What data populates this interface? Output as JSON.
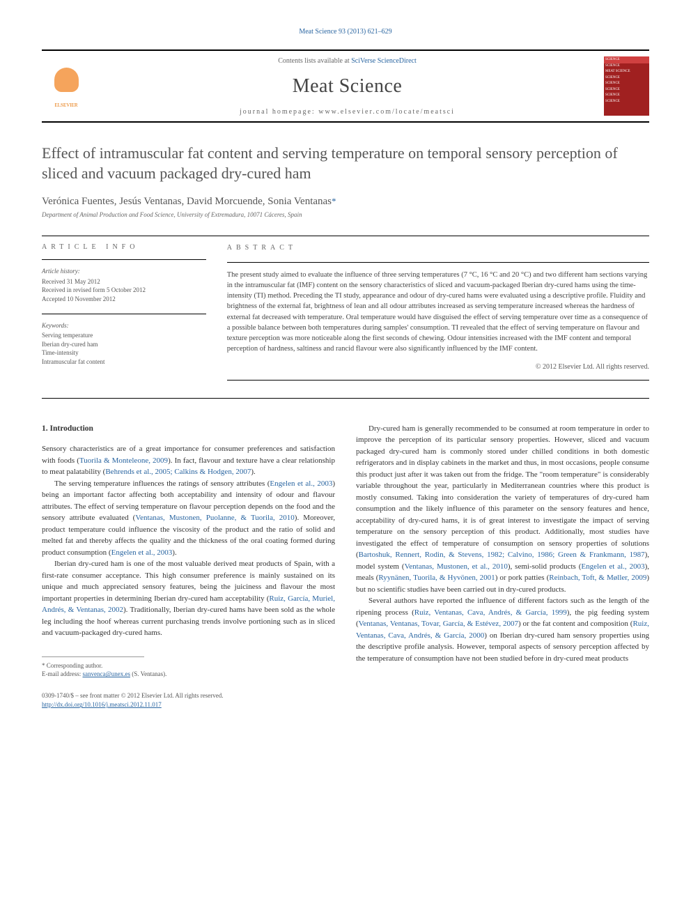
{
  "header_link": "Meat Science 93 (2013) 621–629",
  "contents_lists": "Contents lists available at ",
  "contents_link": "SciVerse ScienceDirect",
  "journal_name": "Meat Science",
  "homepage_label": "journal homepage: ",
  "homepage_url": "www.elsevier.com/locate/meatsci",
  "publisher": "ELSEVIER",
  "cover_lines": [
    "SCIENCE",
    "SCIENCE",
    "MEAT SCIENCE",
    "SCIENCE",
    "SCIENCE",
    "SCIENCE",
    "SCIENCE",
    "SCIENCE"
  ],
  "title": "Effect of intramuscular fat content and serving temperature on temporal sensory perception of sliced and vacuum packaged dry-cured ham",
  "authors": "Verónica Fuentes, Jesús Ventanas, David Morcuende, Sonia Ventanas",
  "corresp_mark": "*",
  "affiliation": "Department of Animal Production and Food Science, University of Extremadura, 10071 Cáceres, Spain",
  "article_info_heading": "ARTICLE INFO",
  "abstract_heading": "ABSTRACT",
  "history_label": "Article history:",
  "history_received": "Received 31 May 2012",
  "history_revised": "Received in revised form 5 October 2012",
  "history_accepted": "Accepted 10 November 2012",
  "keywords_label": "Keywords:",
  "keywords": [
    "Serving temperature",
    "Iberian dry-cured ham",
    "Time-intensity",
    "Intramuscular fat content"
  ],
  "abstract_text": "The present study aimed to evaluate the influence of three serving temperatures (7 °C, 16 °C and 20 °C) and two different ham sections varying in the intramuscular fat (IMF) content on the sensory characteristics of sliced and vacuum-packaged Iberian dry-cured hams using the time-intensity (TI) method. Preceding the TI study, appearance and odour of dry-cured hams were evaluated using a descriptive profile. Fluidity and brightness of the external fat, brightness of lean and all odour attributes increased as serving temperature increased whereas the hardness of external fat decreased with temperature. Oral temperature would have disguised the effect of serving temperature over time as a consequence of a possible balance between both temperatures during samples' consumption. TI revealed that the effect of serving temperature on flavour and texture perception was more noticeable along the first seconds of chewing. Odour intensities increased with the IMF content and temporal perception of hardness, saltiness and rancid flavour were also significantly influenced by the IMF content.",
  "copyright_line": "© 2012 Elsevier Ltd. All rights reserved.",
  "section1_heading": "1. Introduction",
  "left_paras": [
    {
      "text": "Sensory characteristics are of a great importance for consumer preferences and satisfaction with foods (",
      "cite": "Tuorila & Monteleone, 2009",
      "text2": "). In fact, flavour and texture have a clear relationship to meat palatability (",
      "cite2": "Behrends et al., 2005; Calkins & Hodgen, 2007",
      "text3": ")."
    },
    {
      "text": "The serving temperature influences the ratings of sensory attributes (",
      "cite": "Engelen et al., 2003",
      "text2": ") being an important factor affecting both acceptability and intensity of odour and flavour attributes. The effect of serving temperature on flavour perception depends on the food and the sensory attribute evaluated (",
      "cite2": "Ventanas, Mustonen, Puolanne, & Tuorila, 2010",
      "text3": "). Moreover, product temperature could influence the viscosity of the product and the ratio of solid and melted fat and thereby affects the quality and the thickness of the oral coating formed during product consumption (",
      "cite3": "Engelen et al., 2003",
      "text4": ")."
    },
    {
      "text": "Iberian dry-cured ham is one of the most valuable derived meat products of Spain, with a first-rate consumer acceptance. This high consumer preference is mainly sustained on its unique and much appreciated sensory features, being the juiciness and flavour the most important properties in determining Iberian dry-cured ham acceptability (",
      "cite": "Ruiz, García, Muriel, Andrés, & Ventanas, 2002",
      "text2": "). Traditionally, Iberian dry-cured hams have been sold as the whole leg including the hoof whereas current purchasing trends involve portioning such as in sliced and vacuum-packaged dry-cured hams."
    }
  ],
  "right_paras": [
    {
      "text": "Dry-cured ham is generally recommended to be consumed at room temperature in order to improve the perception of its particular sensory properties. However, sliced and vacuum packaged dry-cured ham is commonly stored under chilled conditions in both domestic refrigerators and in display cabinets in the market and thus, in most occasions, people consume this product just after it was taken out from the fridge. The \"room temperature\" is considerably variable throughout the year, particularly in Mediterranean countries where this product is mostly consumed. Taking into consideration the variety of temperatures of dry-cured ham consumption and the likely influence of this parameter on the sensory features and hence, acceptability of dry-cured hams, it is of great interest to investigate the impact of serving temperature on the sensory perception of this product. Additionally, most studies have investigated the effect of temperature of consumption on sensory properties of solutions (",
      "cite": "Bartoshuk, Rennert, Rodin, & Stevens, 1982; Calvino, 1986; Green & Frankmann, 1987",
      "text2": "), model system (",
      "cite2": "Ventanas, Mustonen, et al., 2010",
      "text3": "), semi-solid products (",
      "cite3": "Engelen et al., 2003",
      "text4": "), meals (",
      "cite4": "Ryynänen, Tuorila, & Hyvönen, 2001",
      "text5": ") or pork patties (",
      "cite5": "Reinbach, Toft, & Møller, 2009",
      "text6": ") but no scientific studies have been carried out in dry-cured products."
    },
    {
      "text": "Several authors have reported the influence of different factors such as the length of the ripening process (",
      "cite": "Ruiz, Ventanas, Cava, Andrés, & García, 1999",
      "text2": "), the pig feeding system (",
      "cite2": "Ventanas, Ventanas, Tovar, García, & Estévez, 2007",
      "text3": ") or the fat content and composition (",
      "cite3": "Ruiz, Ventanas, Cava, Andrés, & García, 2000",
      "text4": ") on Iberian dry-cured ham sensory properties using the descriptive profile analysis. However, temporal aspects of sensory perception affected by the temperature of consumption have not been studied before in dry-cured meat products"
    }
  ],
  "footnote_corresp": "* Corresponding author.",
  "footnote_email_label": "E-mail address: ",
  "footnote_email": "sanvenca@unex.es",
  "footnote_email_tail": " (S. Ventanas).",
  "footer_issn": "0309-1740/$ – see front matter © 2012 Elsevier Ltd. All rights reserved.",
  "footer_doi": "http://dx.doi.org/10.1016/j.meatsci.2012.11.017",
  "colors": {
    "link": "#2864a0",
    "text": "#333333",
    "muted": "#666666",
    "elsevier_orange": "#e57200",
    "cover_red": "#a02020"
  },
  "fonts": {
    "body_family": "Georgia, Times New Roman, serif",
    "title_size_pt": 22,
    "journal_size_pt": 28,
    "body_size_pt": 11,
    "abstract_size_pt": 10.5,
    "footnote_size_pt": 9
  }
}
